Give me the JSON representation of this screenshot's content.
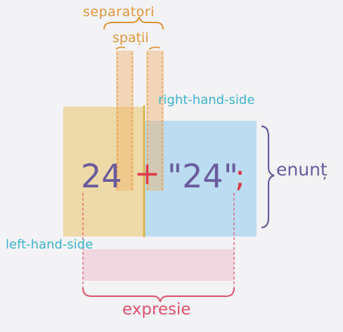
{
  "labels": {
    "separatori": "separatori",
    "spatii": "spații",
    "right_hand_side": "right-hand-side",
    "left_hand_side": "left-hand-side",
    "expresie": "expresie",
    "enunt": "enunț"
  },
  "statement": {
    "left_operand": "24",
    "operator": "+",
    "right_operand": "\"24\"",
    "terminator": ";"
  },
  "colors": {
    "separator_label": "#e2953a",
    "side_label": "#3bb4cf",
    "expression_label": "#e0506a",
    "statement_label": "#6b5a9e",
    "operand": "#6b5a9e",
    "operator": "#e03a4a",
    "left_shade": "#e9c25c",
    "right_shade": "#8dc8ec",
    "expression_shade": "#e8a4b8"
  }
}
